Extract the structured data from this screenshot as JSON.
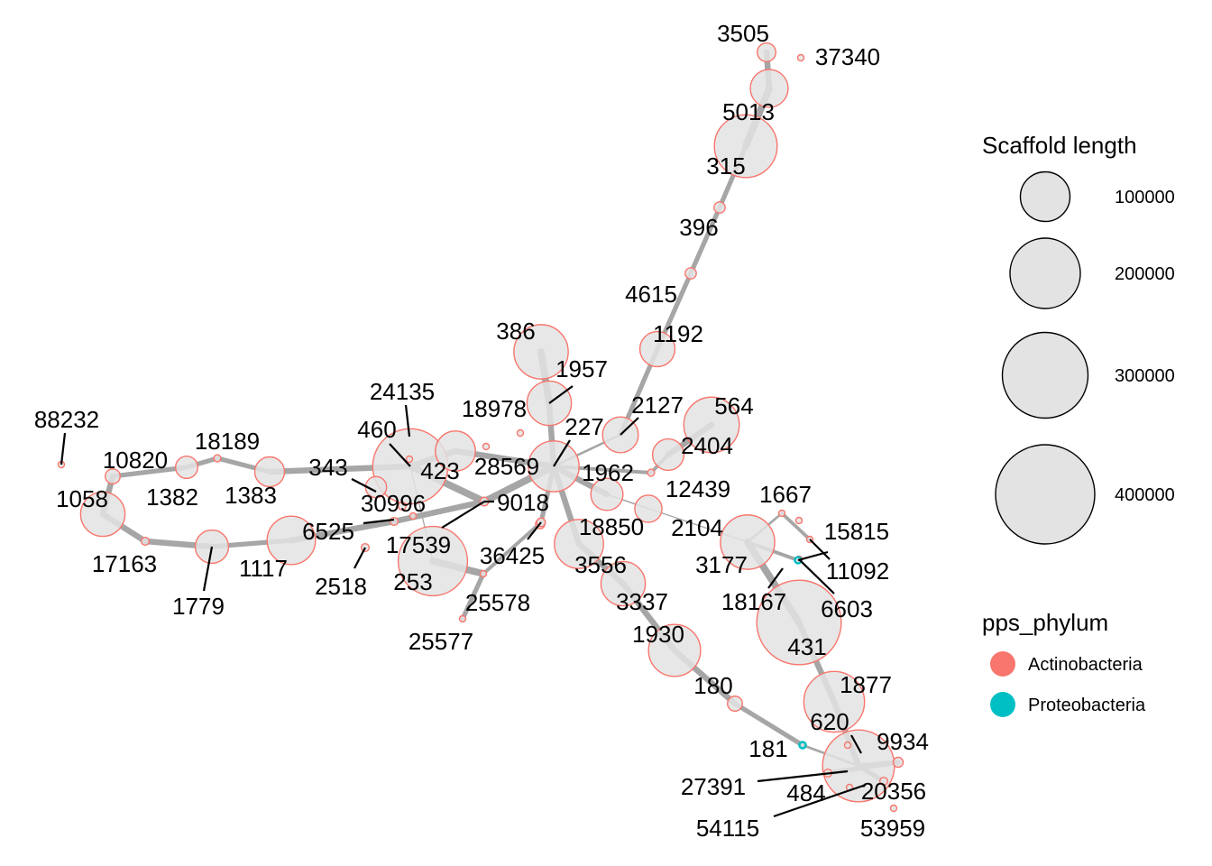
{
  "colors": {
    "Actinobacteria": "#F8766D",
    "Proteobacteria": "#00BFC4",
    "node_fill": "#E3E3E3",
    "edge": "#A6A6A6",
    "label_line": "#000000"
  },
  "nodes": [
    {
      "id": "3505",
      "phylum": "Actinobacteria",
      "length": 14000
    },
    {
      "id": "37340",
      "phylum": "Actinobacteria",
      "length": 800
    },
    {
      "id": "5013",
      "phylum": "Actinobacteria",
      "length": 58000
    },
    {
      "id": "315",
      "phylum": "Actinobacteria",
      "length": 160000
    },
    {
      "id": "396",
      "phylum": "Actinobacteria",
      "length": 5000
    },
    {
      "id": "4615",
      "phylum": "Actinobacteria",
      "length": 5000
    },
    {
      "id": "1192",
      "phylum": "Actinobacteria",
      "length": 50000
    },
    {
      "id": "386",
      "phylum": "Actinobacteria",
      "length": 120000
    },
    {
      "id": "1957",
      "phylum": "Actinobacteria",
      "length": 80000
    },
    {
      "id": "18978",
      "phylum": "Actinobacteria",
      "length": 1000
    },
    {
      "id": "2127",
      "phylum": "Actinobacteria",
      "length": 52000
    },
    {
      "id": "564",
      "phylum": "Actinobacteria",
      "length": 125000
    },
    {
      "id": "227",
      "phylum": "Actinobacteria",
      "length": 105000
    },
    {
      "id": "2404",
      "phylum": "Actinobacteria",
      "length": 40000
    },
    {
      "id": "12439",
      "phylum": "Actinobacteria",
      "length": 2000
    },
    {
      "id": "1962",
      "phylum": "Actinobacteria",
      "length": 42000
    },
    {
      "id": "2104",
      "phylum": "Actinobacteria",
      "length": 30000
    },
    {
      "id": "18850",
      "phylum": "Actinobacteria",
      "length": 3500
    },
    {
      "id": "24135",
      "phylum": "Actinobacteria",
      "length": 1200
    },
    {
      "id": "460",
      "phylum": "Actinobacteria",
      "length": 230000
    },
    {
      "id": "423",
      "phylum": "Actinobacteria",
      "length": 65000
    },
    {
      "id": "28569",
      "phylum": "Actinobacteria",
      "length": 1500
    },
    {
      "id": "343",
      "phylum": "Actinobacteria",
      "length": 18000
    },
    {
      "id": "30996",
      "phylum": "Actinobacteria",
      "length": 2500
    },
    {
      "id": "9018",
      "phylum": "Actinobacteria",
      "length": 3000
    },
    {
      "id": "6525",
      "phylum": "Actinobacteria",
      "length": 2500
    },
    {
      "id": "17539",
      "phylum": "Actinobacteria",
      "length": 1500
    },
    {
      "id": "253",
      "phylum": "Actinobacteria",
      "length": 195000
    },
    {
      "id": "36425",
      "phylum": "Actinobacteria",
      "length": 3000
    },
    {
      "id": "25578",
      "phylum": "Actinobacteria",
      "length": 1200
    },
    {
      "id": "25577",
      "phylum": "Actinobacteria",
      "length": 1500
    },
    {
      "id": "3556",
      "phylum": "Actinobacteria",
      "length": 98000
    },
    {
      "id": "3337",
      "phylum": "Actinobacteria",
      "length": 80000
    },
    {
      "id": "1930",
      "phylum": "Actinobacteria",
      "length": 110000
    },
    {
      "id": "180",
      "phylum": "Actinobacteria",
      "length": 9000
    },
    {
      "id": "88232",
      "phylum": "Actinobacteria",
      "length": 800
    },
    {
      "id": "10820",
      "phylum": "Actinobacteria",
      "length": 9000
    },
    {
      "id": "1058",
      "phylum": "Actinobacteria",
      "length": 80000
    },
    {
      "id": "1382",
      "phylum": "Actinobacteria",
      "length": 20000
    },
    {
      "id": "18189",
      "phylum": "Actinobacteria",
      "length": 2000
    },
    {
      "id": "1383",
      "phylum": "Actinobacteria",
      "length": 36000
    },
    {
      "id": "17163",
      "phylum": "Actinobacteria",
      "length": 2500
    },
    {
      "id": "1779",
      "phylum": "Actinobacteria",
      "length": 45000
    },
    {
      "id": "1117",
      "phylum": "Actinobacteria",
      "length": 95000
    },
    {
      "id": "2518",
      "phylum": "Actinobacteria",
      "length": 2500
    },
    {
      "id": "1667",
      "phylum": "Actinobacteria",
      "length": 1200
    },
    {
      "id": "15815",
      "phylum": "Actinobacteria",
      "length": 800
    },
    {
      "id": "3177",
      "phylum": "Actinobacteria",
      "length": 120000
    },
    {
      "id": "11092",
      "phylum": "Proteobacteria",
      "length": 1000
    },
    {
      "id": "18167",
      "phylum": "Actinobacteria",
      "length": 1200
    },
    {
      "id": "6603",
      "phylum": "Actinobacteria",
      "length": 1200
    },
    {
      "id": "431",
      "phylum": "Actinobacteria",
      "length": 290000
    },
    {
      "id": "1877",
      "phylum": "Actinobacteria",
      "length": 150000
    },
    {
      "id": "620",
      "phylum": "Actinobacteria",
      "length": 1500
    },
    {
      "id": "181",
      "phylum": "Proteobacteria",
      "length": 1500
    },
    {
      "id": "9934",
      "phylum": "Actinobacteria",
      "length": 4000
    },
    {
      "id": "27391",
      "phylum": "Actinobacteria",
      "length": 2500
    },
    {
      "id": "484",
      "phylum": "Actinobacteria",
      "length": 210000
    },
    {
      "id": "20356",
      "phylum": "Actinobacteria",
      "length": 2500
    },
    {
      "id": "54115",
      "phylum": "Actinobacteria",
      "length": 1200
    },
    {
      "id": "53959",
      "phylum": "Actinobacteria",
      "length": 800
    }
  ],
  "labels": {
    "3505": "3505",
    "37340": "37340",
    "5013": "5013",
    "315": "315",
    "396": "396",
    "4615": "4615",
    "1192": "1192",
    "386": "386",
    "1957": "1957",
    "18978": "18978",
    "2127": "2127",
    "564": "564",
    "227": "227",
    "2404": "2404",
    "12439": "12439",
    "1962": "1962",
    "2104": "2104",
    "18850": "18850",
    "24135": "24135",
    "460": "460",
    "423": "423",
    "28569": "28569",
    "343": "343",
    "30996": "30996",
    "9018": "9018",
    "6525": "6525",
    "17539": "17539",
    "253": "253",
    "36425": "36425",
    "25578": "25578",
    "25577": "25577",
    "3556": "3556",
    "3337": "3337",
    "1930": "1930",
    "180": "180",
    "88232": "88232",
    "10820": "10820",
    "1058": "1058",
    "1382": "1382",
    "18189": "18189",
    "1383": "1383",
    "17163": "17163",
    "1779": "1779",
    "1117": "1117",
    "2518": "2518",
    "1667": "1667",
    "15815": "15815",
    "3177": "3177",
    "11092": "11092",
    "18167": "18167",
    "6603": "6603",
    "431": "431",
    "1877": "1877",
    "620": "620",
    "181": "181",
    "9934": "9934",
    "27391": "27391",
    "484": "484",
    "20356": "20356",
    "54115": "54115",
    "53959": "53959"
  },
  "edges": [
    [
      "3505",
      "5013",
      5
    ],
    [
      "5013",
      "315",
      6
    ],
    [
      "315",
      "396",
      4
    ],
    [
      "396",
      "4615",
      4
    ],
    [
      "4615",
      "1192",
      4
    ],
    [
      "1192",
      "2127",
      4
    ],
    [
      "386",
      "1957",
      6
    ],
    [
      "1957",
      "227",
      5
    ],
    [
      "2127",
      "227",
      2
    ],
    [
      "564",
      "2404",
      5
    ],
    [
      "2404",
      "12439",
      3
    ],
    [
      "12439",
      "227",
      3
    ],
    [
      "227",
      "1962",
      5
    ],
    [
      "227",
      "9018",
      6
    ],
    [
      "227",
      "3556",
      5
    ],
    [
      "227",
      "36425",
      4
    ],
    [
      "1962",
      "2104",
      1
    ],
    [
      "1962",
      "3177",
      1
    ],
    [
      "423",
      "227",
      5
    ],
    [
      "460",
      "423",
      5
    ],
    [
      "24135",
      "460",
      1
    ],
    [
      "460",
      "9018",
      6
    ],
    [
      "9018",
      "6525",
      5
    ],
    [
      "6525",
      "1117",
      5
    ],
    [
      "1117",
      "1779",
      4
    ],
    [
      "1779",
      "17163",
      5
    ],
    [
      "17163",
      "1058",
      5
    ],
    [
      "1058",
      "10820",
      5
    ],
    [
      "10820",
      "1382",
      4
    ],
    [
      "1382",
      "18189",
      4
    ],
    [
      "18189",
      "1383",
      4
    ],
    [
      "1383",
      "460",
      5
    ],
    [
      "253",
      "25578",
      6
    ],
    [
      "36425",
      "25578",
      3
    ],
    [
      "25578",
      "25577",
      4
    ],
    [
      "3556",
      "3337",
      5
    ],
    [
      "3337",
      "1930",
      5
    ],
    [
      "1930",
      "180",
      5
    ],
    [
      "180",
      "181",
      4
    ],
    [
      "181",
      "484",
      2
    ],
    [
      "3177",
      "11092",
      3
    ],
    [
      "3177",
      "431",
      6
    ],
    [
      "431",
      "1877",
      5
    ],
    [
      "1877",
      "484",
      5
    ],
    [
      "1667",
      "15815",
      3
    ],
    [
      "1667",
      "3177",
      2
    ],
    [
      "484",
      "9934",
      4
    ],
    [
      "484",
      "20356",
      4
    ],
    [
      "27391",
      "9934",
      4
    ],
    [
      "253",
      "460",
      1
    ]
  ],
  "legend": {
    "size_title": "Scaffold length",
    "size_values": [
      "100000",
      "200000",
      "300000",
      "400000"
    ],
    "color_title": "pps_phylum",
    "color_items": [
      "Actinobacteria",
      "Proteobacteria"
    ]
  }
}
